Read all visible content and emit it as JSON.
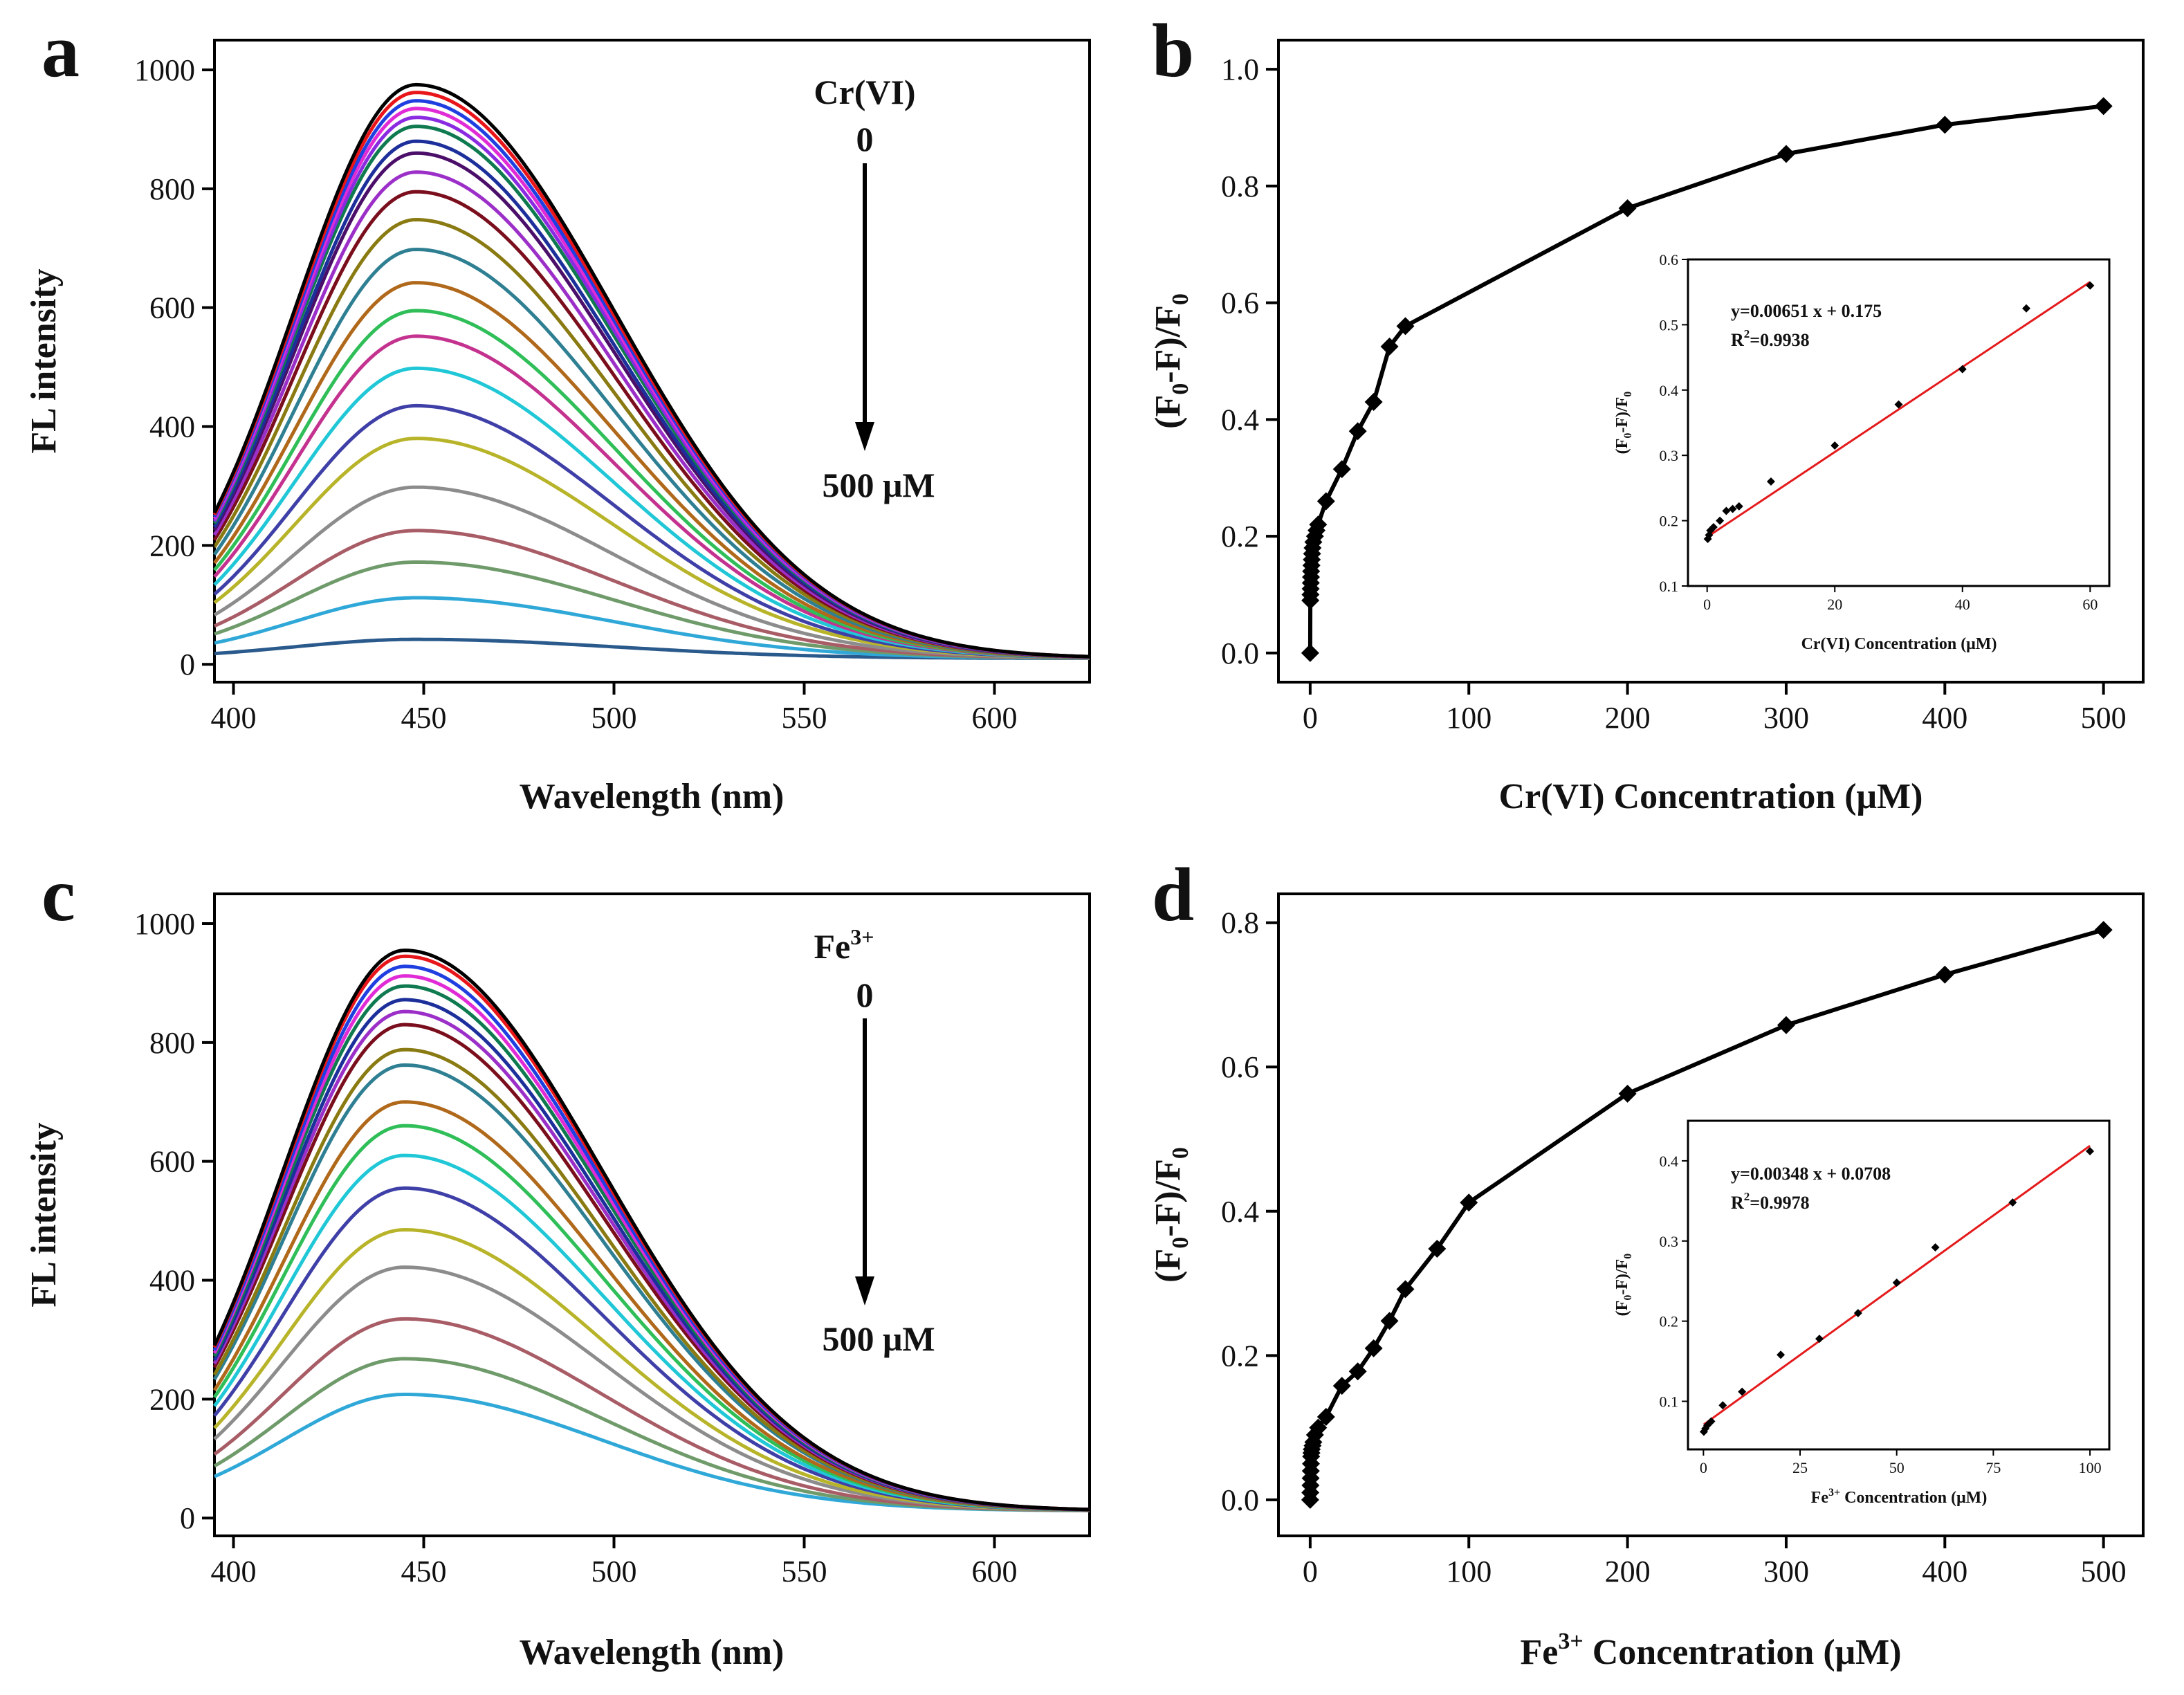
{
  "chart_data": [
    {
      "panel": "a",
      "type": "line",
      "xlabel": "Wavelength (nm)",
      "ylabel": "FL intensity",
      "xlim": [
        395,
        625
      ],
      "ylim": [
        -30,
        1050
      ],
      "xticks": [
        400,
        450,
        500,
        550,
        600
      ],
      "yticks": [
        0,
        200,
        400,
        600,
        800,
        1000
      ],
      "annotation_top": "Cr(VI)",
      "annotation_start": "0",
      "annotation_end": "500 μM",
      "series_peak_wavelength_nm": 448,
      "series_tail_intensity": 10,
      "series": [
        {
          "peak": 975,
          "color": "#000000"
        },
        {
          "peak": 962,
          "color": "#e8161b"
        },
        {
          "peak": 948,
          "color": "#1f3fe0"
        },
        {
          "peak": 935,
          "color": "#e02bd6"
        },
        {
          "peak": 920,
          "color": "#8a2be2"
        },
        {
          "peak": 905,
          "color": "#0f7a50"
        },
        {
          "peak": 880,
          "color": "#1c2f9a"
        },
        {
          "peak": 860,
          "color": "#4b0f6a"
        },
        {
          "peak": 828,
          "color": "#9b2fc8"
        },
        {
          "peak": 795,
          "color": "#7a0e1c"
        },
        {
          "peak": 748,
          "color": "#8a7a12"
        },
        {
          "peak": 698,
          "color": "#2f7f93"
        },
        {
          "peak": 642,
          "color": "#b0681a"
        },
        {
          "peak": 595,
          "color": "#2fbe58"
        },
        {
          "peak": 552,
          "color": "#c4328f"
        },
        {
          "peak": 498,
          "color": "#20c7d6"
        },
        {
          "peak": 435,
          "color": "#3f3fa8"
        },
        {
          "peak": 380,
          "color": "#b8b42a"
        },
        {
          "peak": 298,
          "color": "#8c8c8c"
        },
        {
          "peak": 225,
          "color": "#a85c66"
        },
        {
          "peak": 172,
          "color": "#6f9a6a"
        },
        {
          "peak": 112,
          "color": "#2fa8d8"
        },
        {
          "peak": 42,
          "color": "#2a5a8c"
        }
      ]
    },
    {
      "panel": "b",
      "type": "line",
      "xlabel": "Cr(VI) Concentration (μM)",
      "ylabel": "(F0-F)/F0",
      "xlim": [
        -20,
        525
      ],
      "ylim": [
        -0.05,
        1.05
      ],
      "xticks": [
        0,
        100,
        200,
        300,
        400,
        500
      ],
      "yticks": [
        "0.0",
        "0.2",
        "0.4",
        "0.6",
        "0.8",
        "1.0"
      ],
      "x": [
        0,
        0.1,
        0.2,
        0.3,
        0.4,
        0.5,
        0.6,
        0.8,
        1,
        1.2,
        1.5,
        2,
        3,
        4,
        5,
        10,
        20,
        30,
        40,
        50,
        60,
        200,
        300,
        400,
        500
      ],
      "y": [
        0.0,
        0.09,
        0.1,
        0.11,
        0.12,
        0.13,
        0.14,
        0.15,
        0.16,
        0.17,
        0.18,
        0.19,
        0.2,
        0.21,
        0.22,
        0.26,
        0.315,
        0.38,
        0.43,
        0.525,
        0.56,
        0.762,
        0.855,
        0.905,
        0.937
      ],
      "inset": {
        "type": "scatter",
        "xlabel": "Cr(VI) Concentration (μM)",
        "ylabel": "(F0-F)/F0",
        "xlim": [
          -3,
          63
        ],
        "ylim": [
          0.1,
          0.6
        ],
        "xticks": [
          0,
          20,
          40,
          60
        ],
        "yticks": [
          "0.1",
          "0.2",
          "0.3",
          "0.4",
          "0.5",
          "0.6"
        ],
        "equation": "y=0.00651 x + 0.175",
        "r2_prefix": "R",
        "r2_sup": "2",
        "r2_value": "=0.9938",
        "fit_slope": 0.00651,
        "fit_intercept": 0.175,
        "fit_color": "#e41a1c",
        "x": [
          0.1,
          0.3,
          0.5,
          1,
          2,
          3,
          4,
          5,
          10,
          20,
          30,
          40,
          50,
          60
        ],
        "y": [
          0.172,
          0.178,
          0.185,
          0.19,
          0.2,
          0.215,
          0.218,
          0.222,
          0.26,
          0.315,
          0.378,
          0.432,
          0.525,
          0.56
        ]
      }
    },
    {
      "panel": "c",
      "type": "line",
      "xlabel": "Wavelength (nm)",
      "ylabel": "FL intensity",
      "xlim": [
        395,
        625
      ],
      "ylim": [
        -30,
        1050
      ],
      "xticks": [
        400,
        450,
        500,
        550,
        600
      ],
      "yticks": [
        0,
        200,
        400,
        600,
        800,
        1000
      ],
      "annotation_top": "Fe",
      "annotation_top_sup": "3+",
      "annotation_start": "0",
      "annotation_end": "500 μM",
      "series_peak_wavelength_nm": 445,
      "series_tail_intensity": 12,
      "series": [
        {
          "peak": 955,
          "color": "#000000"
        },
        {
          "peak": 945,
          "color": "#e8161b"
        },
        {
          "peak": 928,
          "color": "#1f3fe0"
        },
        {
          "peak": 912,
          "color": "#e02bd6"
        },
        {
          "peak": 895,
          "color": "#0f7a50"
        },
        {
          "peak": 872,
          "color": "#1c2f9a"
        },
        {
          "peak": 852,
          "color": "#9b2fc8"
        },
        {
          "peak": 830,
          "color": "#7a0e1c"
        },
        {
          "peak": 788,
          "color": "#8a7a12"
        },
        {
          "peak": 762,
          "color": "#2f7f93"
        },
        {
          "peak": 700,
          "color": "#b0681a"
        },
        {
          "peak": 660,
          "color": "#2fbe58"
        },
        {
          "peak": 610,
          "color": "#20c7d6"
        },
        {
          "peak": 555,
          "color": "#3f3fa8"
        },
        {
          "peak": 485,
          "color": "#b8b42a"
        },
        {
          "peak": 422,
          "color": "#8c8c8c"
        },
        {
          "peak": 335,
          "color": "#a85c66"
        },
        {
          "peak": 268,
          "color": "#6f9a6a"
        },
        {
          "peak": 208,
          "color": "#2fa8d8"
        }
      ]
    },
    {
      "panel": "d",
      "type": "line",
      "xlabel_main": "Fe",
      "xlabel_sup": "3+",
      "xlabel_rest": " Concentration (μM)",
      "ylabel": "(F0-F)/F0",
      "xlim": [
        -20,
        525
      ],
      "ylim": [
        -0.05,
        0.84
      ],
      "xticks": [
        0,
        100,
        200,
        300,
        400,
        500
      ],
      "yticks": [
        "0.0",
        "0.2",
        "0.4",
        "0.6",
        "0.8"
      ],
      "x": [
        0,
        0.1,
        0.2,
        0.3,
        0.4,
        0.5,
        0.6,
        0.8,
        1,
        1.5,
        2,
        3,
        5,
        10,
        20,
        30,
        40,
        50,
        60,
        80,
        100,
        200,
        300,
        400,
        500
      ],
      "y": [
        0.0,
        0.01,
        0.02,
        0.03,
        0.04,
        0.05,
        0.06,
        0.065,
        0.07,
        0.075,
        0.08,
        0.09,
        0.1,
        0.115,
        0.158,
        0.178,
        0.21,
        0.248,
        0.292,
        0.348,
        0.412,
        0.563,
        0.658,
        0.728,
        0.79
      ],
      "inset": {
        "type": "scatter",
        "xlabel_main": "Fe",
        "xlabel_sup": "3+",
        "xlabel_rest": " Concentration (μM)",
        "ylabel": "(F0-F)/F0",
        "xlim": [
          -4,
          105
        ],
        "ylim": [
          0.04,
          0.45
        ],
        "xticks": [
          0,
          25,
          50,
          75,
          100
        ],
        "yticks": [
          "0.1",
          "0.2",
          "0.3",
          "0.4"
        ],
        "equation": "y=0.00348 x + 0.0708",
        "r2_prefix": "R",
        "r2_sup": "2",
        "r2_value": "=0.9978",
        "fit_slope": 0.00348,
        "fit_intercept": 0.0708,
        "fit_color": "#e41a1c",
        "x": [
          0.1,
          0.5,
          1,
          2,
          5,
          10,
          20,
          30,
          40,
          50,
          60,
          80,
          100
        ],
        "y": [
          0.062,
          0.066,
          0.07,
          0.075,
          0.095,
          0.112,
          0.158,
          0.178,
          0.21,
          0.248,
          0.292,
          0.348,
          0.412
        ]
      }
    }
  ]
}
